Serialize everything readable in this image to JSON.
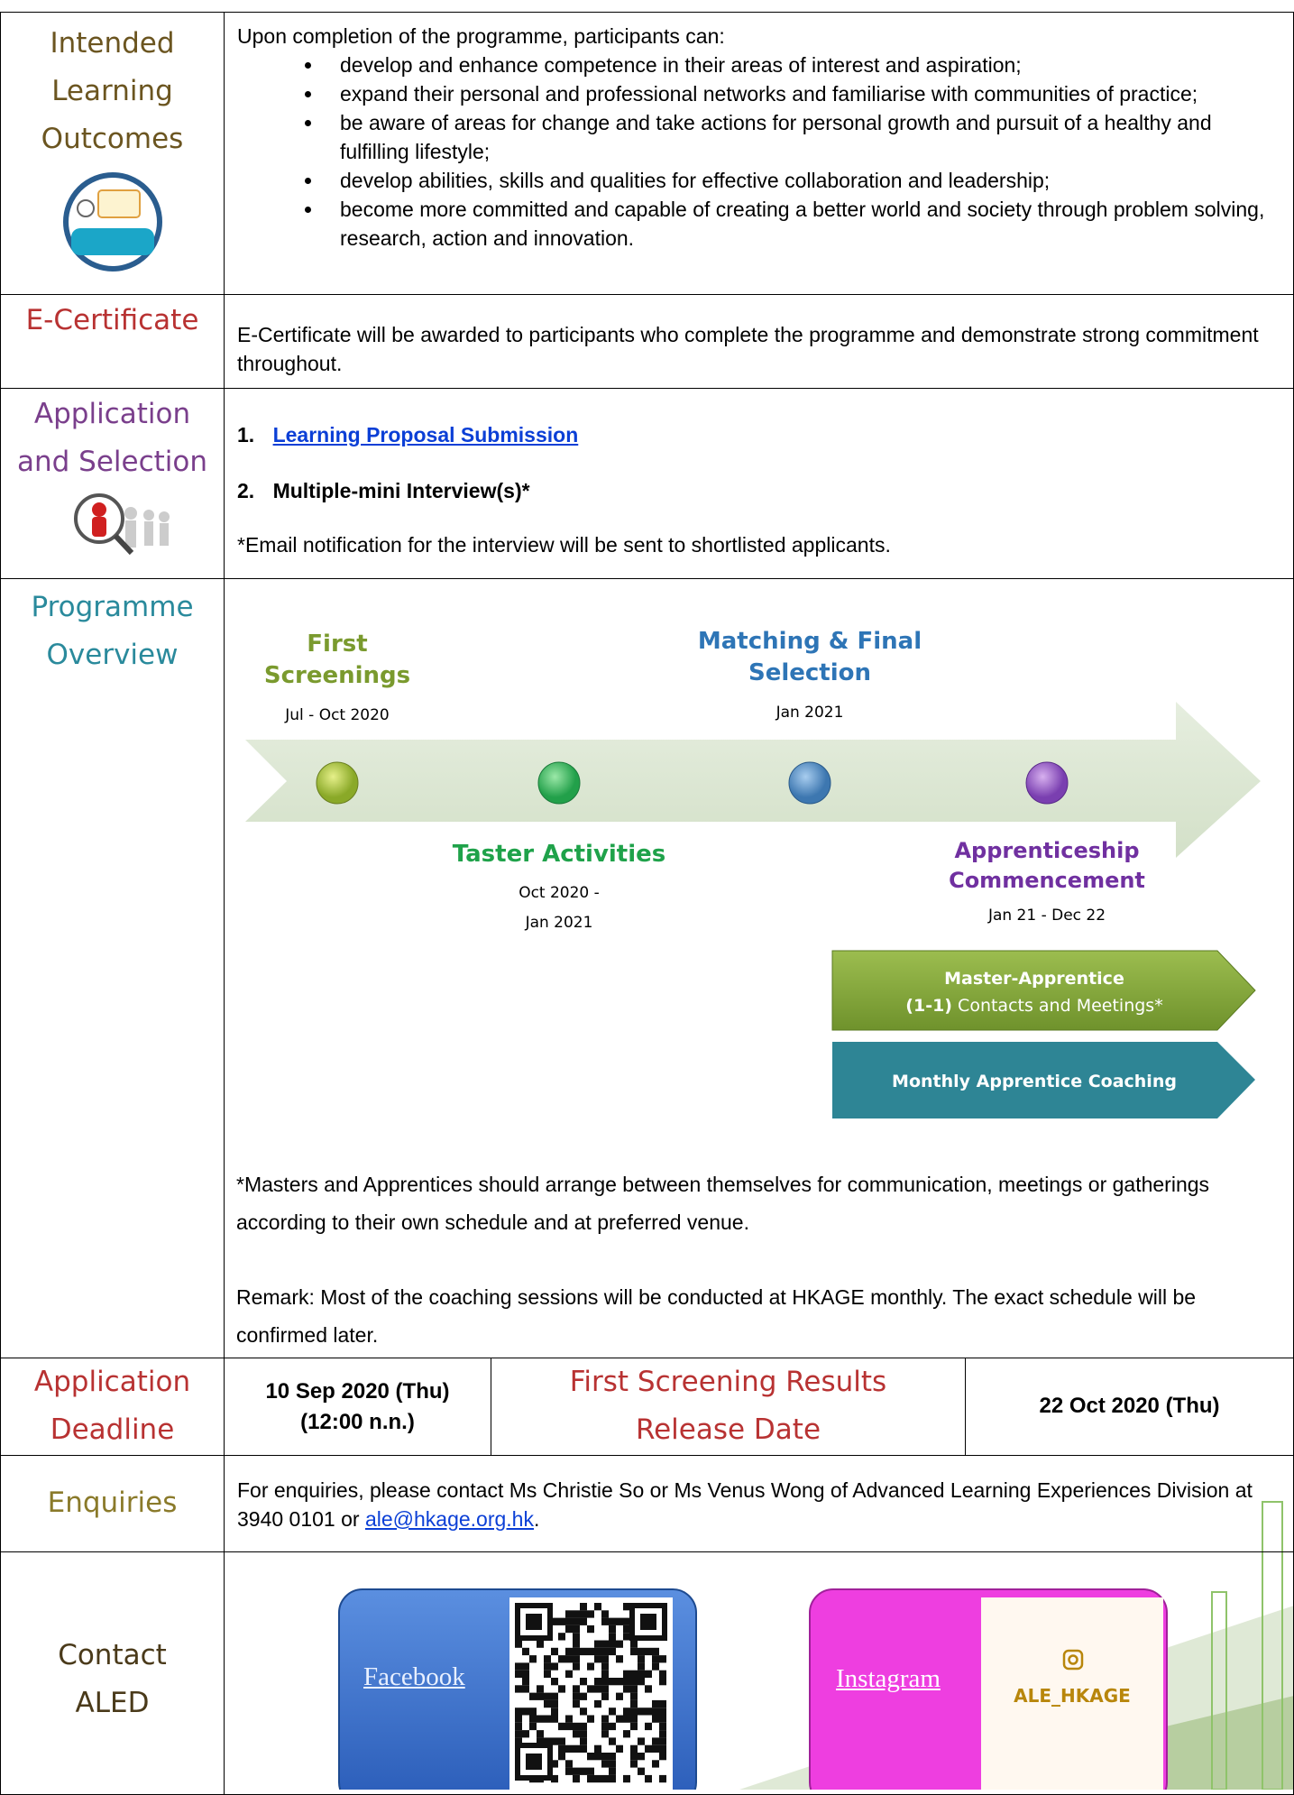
{
  "outcomes": {
    "label": [
      "Intended",
      "Learning",
      "Outcomes"
    ],
    "intro": "Upon completion of the programme, participants can:",
    "items": [
      "develop and enhance competence in their areas of interest and aspiration;",
      "expand their personal and professional networks and familiarise with communities of practice;",
      "be aware of areas for change and take actions for personal growth and pursuit of a healthy and fulfilling lifestyle;",
      "develop abilities, skills and qualities for effective collaboration and leadership;",
      "become more committed and capable of creating a better world and society through problem solving, research, action and innovation."
    ]
  },
  "certificate": {
    "label": "E-Certificate",
    "text": "E-Certificate will be awarded to participants who complete the programme and demonstrate strong commitment throughout."
  },
  "application": {
    "label": [
      "Application",
      "and Selection"
    ],
    "steps": [
      {
        "number": "1.",
        "text": "Learning Proposal Submission"
      },
      {
        "number": "2.",
        "text": "Multiple-mini Interview(s)*"
      }
    ],
    "note": "*Email notification for the interview will be sent to shortlisted applicants."
  },
  "overview": {
    "label": [
      "Programme",
      "Overview"
    ],
    "timeline": [
      {
        "title": [
          "First",
          "Screenings"
        ],
        "date": [
          "Jul - Oct 2020"
        ]
      },
      {
        "title": [
          "Taster Activities"
        ],
        "date": [
          "Oct 2020 -",
          "Jan 2021"
        ]
      },
      {
        "title": [
          "Matching & Final",
          "Selection"
        ],
        "date": [
          "Jan 2021"
        ]
      },
      {
        "title": [
          "Apprenticeship",
          "Commencement"
        ],
        "date": [
          "Jan 21 - Dec 22"
        ]
      }
    ],
    "bars": [
      {
        "title": "Master-Apprentice",
        "emphasis": "(1-1)",
        "text": "Contacts and Meetings*"
      },
      {
        "title": "Monthly Apprentice Coaching"
      }
    ],
    "notes": [
      "*Masters and Apprentices should arrange between themselves for communication, meetings or gatherings according to their own schedule and at preferred venue.",
      "Remark: Most of the coaching sessions will be conducted at HKAGE monthly. The exact schedule will be confirmed later."
    ]
  },
  "deadline": {
    "label": [
      "Application",
      "Deadline"
    ],
    "deadline": [
      "10 Sep 2020 (Thu)",
      "(12:00 n.n.)"
    ],
    "results_label": [
      "First Screening Results",
      "Release Date"
    ],
    "results_date": "22 Oct 2020 (Thu)"
  },
  "enquiries": {
    "label": "Enquiries",
    "text_before": "For enquiries, please contact Ms Christie So or Ms Venus Wong of Advanced Learning Experiences Division at 3940 0101 or ",
    "email": "ale@hkage.org.hk",
    "text_after": "."
  },
  "contact": {
    "label": [
      "Contact",
      "ALED"
    ],
    "facebook": "Facebook",
    "instagram": "Instagram",
    "instagram_handle": "ALE_HKAGE"
  }
}
